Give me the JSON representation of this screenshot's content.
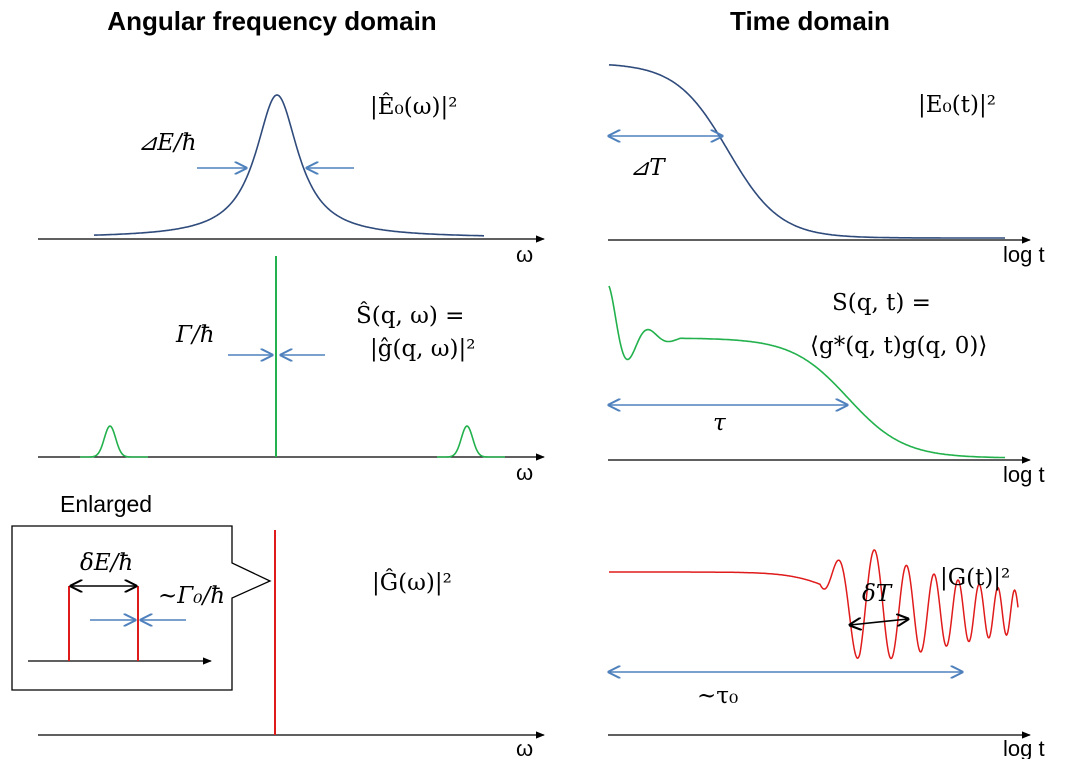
{
  "headers": {
    "left": "Angular frequency domain",
    "right": "Time domain"
  },
  "row1": {
    "freq_label": "|Ê₀(ω)|²",
    "width_label": "⊿E/ħ",
    "freq_axis": "ω",
    "time_label": "|E₀(t)|²",
    "time_width_label": "⊿T",
    "time_axis": "log t"
  },
  "row2": {
    "freq_label_line1": "Ŝ(q, ω) =",
    "freq_label_line2": "|ĝ(q, ω)|²",
    "width_label": "Γ/ħ",
    "freq_axis": "ω",
    "time_label_line1": "S(q, t) =",
    "time_label_line2": "⟨g*(q, t)g(q, 0)⟩",
    "tau_label": "τ",
    "time_axis": "log t"
  },
  "row3": {
    "enlarged_label": "Enlarged",
    "inset_split_label": "δE/ħ",
    "inset_width_label": "~Γ₀/ħ",
    "freq_label": "|Ĝ(ω)|²",
    "freq_axis": "ω",
    "time_label": "|G(t)|²",
    "delta_t_label": "δT",
    "tau0_label": "~τ₀",
    "time_axis": "log t"
  },
  "colors": {
    "row1_curve": "#2f4b7c",
    "row2_curve": "#22b14c",
    "row3_curve": "#e01b1b",
    "width_arrow": "#4f81bd",
    "black_arrow": "#000000"
  }
}
